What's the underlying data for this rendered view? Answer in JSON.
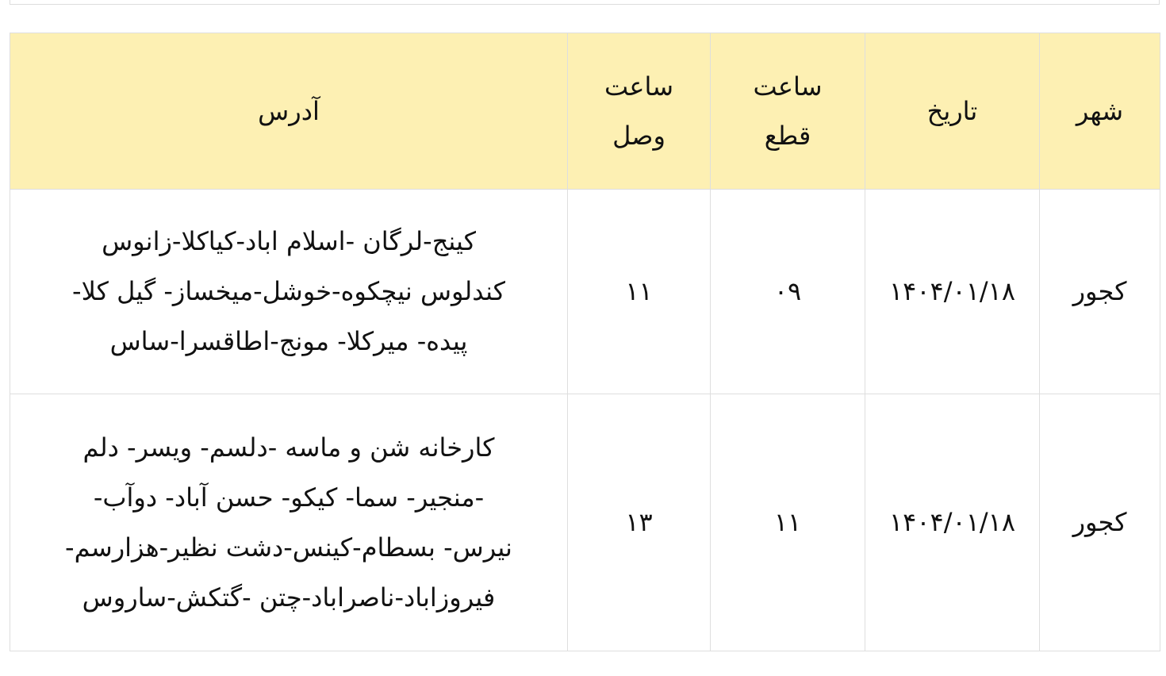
{
  "headers": {
    "city": "شهر",
    "date": "تاریخ",
    "cut_time": [
      "ساعت",
      "قطع"
    ],
    "connect_time": [
      "ساعت",
      "وصل"
    ],
    "address": "آدرس"
  },
  "rows": [
    {
      "city": "کجور",
      "date": "۱۴۰۴/۰۱/۱۸",
      "cut": "۰۹",
      "connect": "۱۱",
      "address": [
        "کینج-لرگان -اسلام اباد-کیاکلا-زانوس",
        "کندلوس نیچکوه-خوشل-میخساز- گیل کلا-",
        "پیده- میرکلا- مونج-اطاقسرا-ساس"
      ]
    },
    {
      "city": "کجور",
      "date": "۱۴۰۴/۰۱/۱۸",
      "cut": "۱۱",
      "connect": "۱۳",
      "address": [
        "کارخانه شن و ماسه -دلسم- ویسر- دلم",
        "-منجیر- سما- کیکو- حسن آباد- دوآب-",
        "نیرس- بسطام-کینس-دشت نظیر-هزارسم-",
        "فیروزاباد-ناصراباد-چتن -گتکش-ساروس"
      ]
    }
  ],
  "colors": {
    "header_bg": "#fdf0b3",
    "border": "#dedede"
  }
}
